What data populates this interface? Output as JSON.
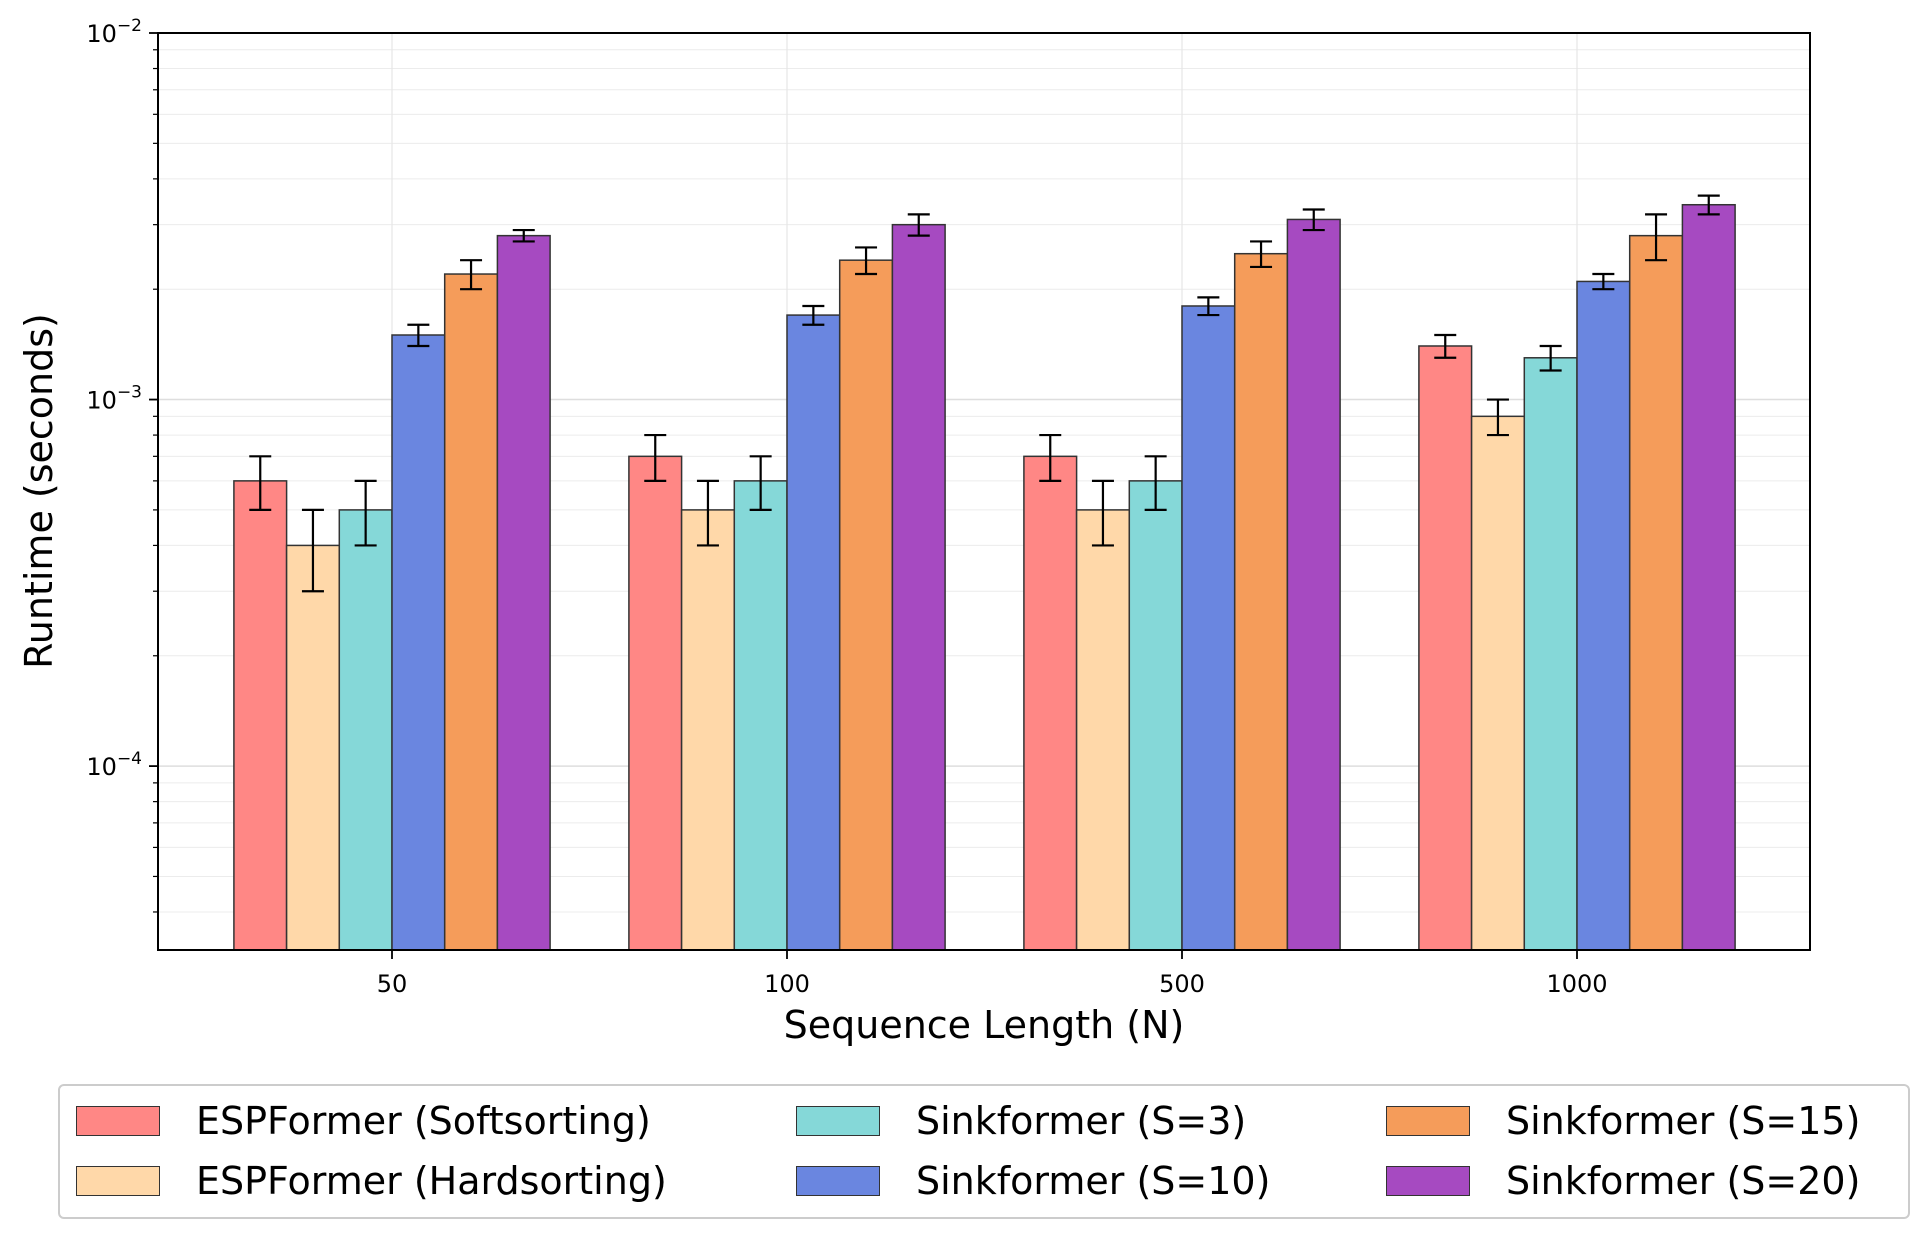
{
  "chart_data": {
    "type": "bar",
    "xlabel": "Sequence Length (N)",
    "ylabel": "Runtime (seconds)",
    "yscale": "log",
    "ylim": [
      3.15e-05,
      0.01
    ],
    "ytick_labels": [
      {
        "value": 0.01,
        "base": "10",
        "exp": "−2"
      },
      {
        "value": 0.001,
        "base": "10",
        "exp": "−3"
      },
      {
        "value": 0.0001,
        "base": "10",
        "exp": "−4"
      }
    ],
    "grid": true,
    "legend_position": "below",
    "categories": [
      "50",
      "100",
      "500",
      "1000"
    ],
    "series": [
      {
        "name": "ESPFormer (Softsorting)",
        "color": "#FF8785",
        "values": [
          0.0006,
          0.0007,
          0.0007,
          0.0014
        ],
        "errors": [
          0.0001,
          0.0001,
          0.0001,
          0.0001
        ]
      },
      {
        "name": "ESPFormer (Hardsorting)",
        "color": "#FFD8A9",
        "values": [
          0.0004,
          0.0005,
          0.0005,
          0.0009
        ],
        "errors": [
          0.0001,
          0.0001,
          0.0001,
          0.0001
        ]
      },
      {
        "name": "Sinkformer (S=3)",
        "color": "#85D8D8",
        "values": [
          0.0005,
          0.0006,
          0.0006,
          0.0013
        ],
        "errors": [
          0.0001,
          0.0001,
          0.0001,
          0.0001
        ]
      },
      {
        "name": "Sinkformer (S=10)",
        "color": "#6A86E0",
        "values": [
          0.0015,
          0.0017,
          0.0018,
          0.0021
        ],
        "errors": [
          0.0001,
          0.0001,
          0.0001,
          0.0001
        ]
      },
      {
        "name": "Sinkformer (S=15)",
        "color": "#F59C5A",
        "values": [
          0.0022,
          0.0024,
          0.0025,
          0.0028
        ],
        "errors": [
          0.0002,
          0.0002,
          0.0002,
          0.0004
        ]
      },
      {
        "name": "Sinkformer (S=20)",
        "color": "#A64AC1",
        "values": [
          0.0028,
          0.003,
          0.0031,
          0.0034
        ],
        "errors": [
          0.0001,
          0.0002,
          0.0002,
          0.0002
        ]
      }
    ]
  }
}
